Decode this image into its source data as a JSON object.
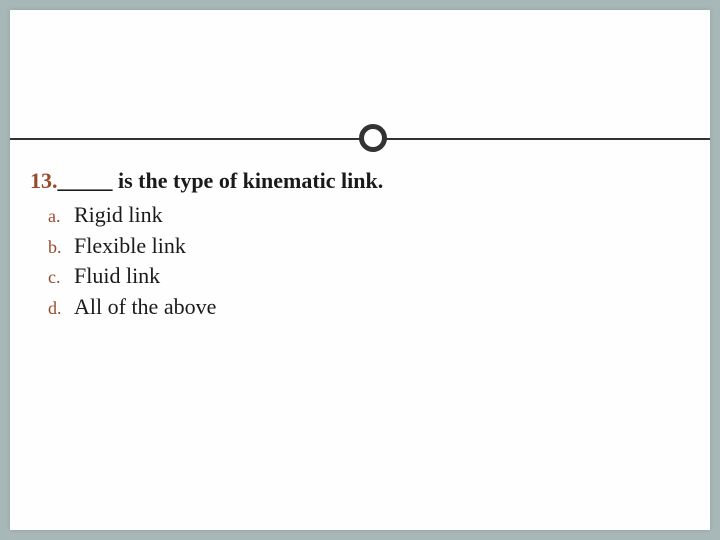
{
  "slide": {
    "background_color": "#a8b8b8",
    "card_color": "#fefefe",
    "line_color": "#333333",
    "circle_border_width": 5,
    "question": {
      "number": "13.",
      "number_color": "#9a4a2a",
      "blank": "_____",
      "text": " is the type of kinematic link.",
      "font_size": 22,
      "font_weight": "bold"
    },
    "options": [
      {
        "letter": "a.",
        "text": "Rigid link"
      },
      {
        "letter": "b.",
        "text": "Flexible link"
      },
      {
        "letter": "c.",
        "text": "Fluid link"
      },
      {
        "letter": "d.",
        "text": "All of the above"
      }
    ],
    "option_letter_color": "#9a4a2a",
    "option_font_size": 22
  }
}
